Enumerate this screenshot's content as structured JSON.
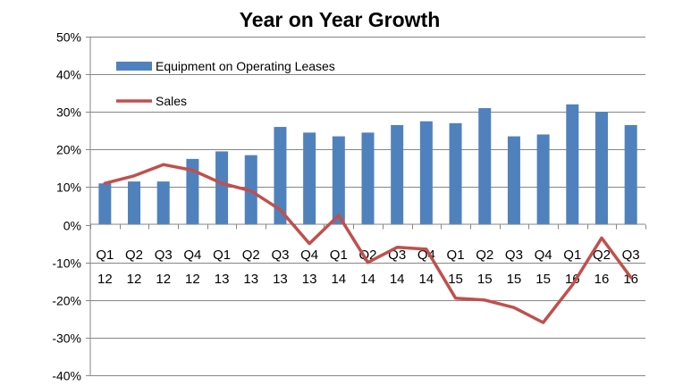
{
  "chart_data": {
    "type": "bar",
    "title": "Year on Year Growth",
    "xlabel": "",
    "ylabel": "",
    "ylim": [
      -40,
      50
    ],
    "y_ticks": [
      50,
      40,
      30,
      20,
      10,
      0,
      -10,
      -20,
      -30,
      -40
    ],
    "y_tick_labels": [
      "50%",
      "40%",
      "30%",
      "20%",
      "10%",
      "0%",
      "-10%",
      "-20%",
      "-30%",
      "-40%"
    ],
    "grid": true,
    "legend_position": "top-left",
    "categories": [
      {
        "quarter": "Q1",
        "year": "12"
      },
      {
        "quarter": "Q2",
        "year": "12"
      },
      {
        "quarter": "Q3",
        "year": "12"
      },
      {
        "quarter": "Q4",
        "year": "12"
      },
      {
        "quarter": "Q1",
        "year": "13"
      },
      {
        "quarter": "Q2",
        "year": "13"
      },
      {
        "quarter": "Q3",
        "year": "13"
      },
      {
        "quarter": "Q4",
        "year": "13"
      },
      {
        "quarter": "Q1",
        "year": "14"
      },
      {
        "quarter": "Q2",
        "year": "14"
      },
      {
        "quarter": "Q3",
        "year": "14"
      },
      {
        "quarter": "Q4",
        "year": "14"
      },
      {
        "quarter": "Q1",
        "year": "15"
      },
      {
        "quarter": "Q2",
        "year": "15"
      },
      {
        "quarter": "Q3",
        "year": "15"
      },
      {
        "quarter": "Q4",
        "year": "15"
      },
      {
        "quarter": "Q1",
        "year": "16"
      },
      {
        "quarter": "Q2",
        "year": "16"
      },
      {
        "quarter": "Q3",
        "year": "16"
      }
    ],
    "series": [
      {
        "name": "Equipment on Operating Leases",
        "type": "bar",
        "color": "#4F81BD",
        "values": [
          11,
          11.5,
          11.5,
          17.5,
          19.5,
          18.5,
          26,
          24.5,
          23.5,
          24.5,
          26.5,
          27.5,
          27,
          31,
          23.5,
          24,
          32,
          30,
          26.5
        ]
      },
      {
        "name": "Sales",
        "type": "line",
        "color": "#C0504D",
        "values": [
          11,
          13,
          16,
          14.5,
          11,
          9,
          4,
          -5,
          2.5,
          -10,
          -6,
          -6.5,
          -19.5,
          -20,
          -22,
          -26,
          -16,
          -3.5,
          -14
        ]
      }
    ]
  }
}
